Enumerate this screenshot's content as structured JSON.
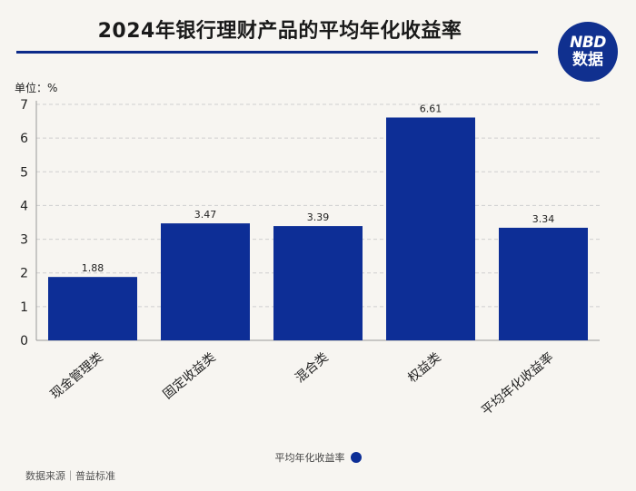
{
  "header": {
    "title": "2024年银行理财产品的平均年化收益率",
    "unit_label": "单位：%"
  },
  "logo": {
    "line1": "NBD",
    "line2": "数据",
    "color": "#10308f"
  },
  "chart_data": {
    "type": "bar",
    "categories": [
      "现金管理类",
      "固定收益类",
      "混合类",
      "权益类",
      "平均年化收益率"
    ],
    "series": [
      {
        "name": "平均年化收益率",
        "values": [
          1.88,
          3.47,
          3.39,
          6.61,
          3.34
        ]
      }
    ],
    "data_labels": [
      "1.88",
      "3.47",
      "3.39",
      "6.61",
      "3.34"
    ],
    "y_ticks": [
      "0",
      "1",
      "2",
      "3",
      "4",
      "5",
      "6",
      "7"
    ],
    "ylim": [
      0,
      7
    ],
    "title": "2024年银行理财产品的平均年化收益率",
    "ylabel": "单位：%",
    "bar_color": "#0d2e96",
    "grid": true,
    "legend_position": "bottom-center"
  },
  "legend": {
    "label": "平均年化收益率"
  },
  "footer": {
    "source": "数据来源｜普益标准"
  }
}
